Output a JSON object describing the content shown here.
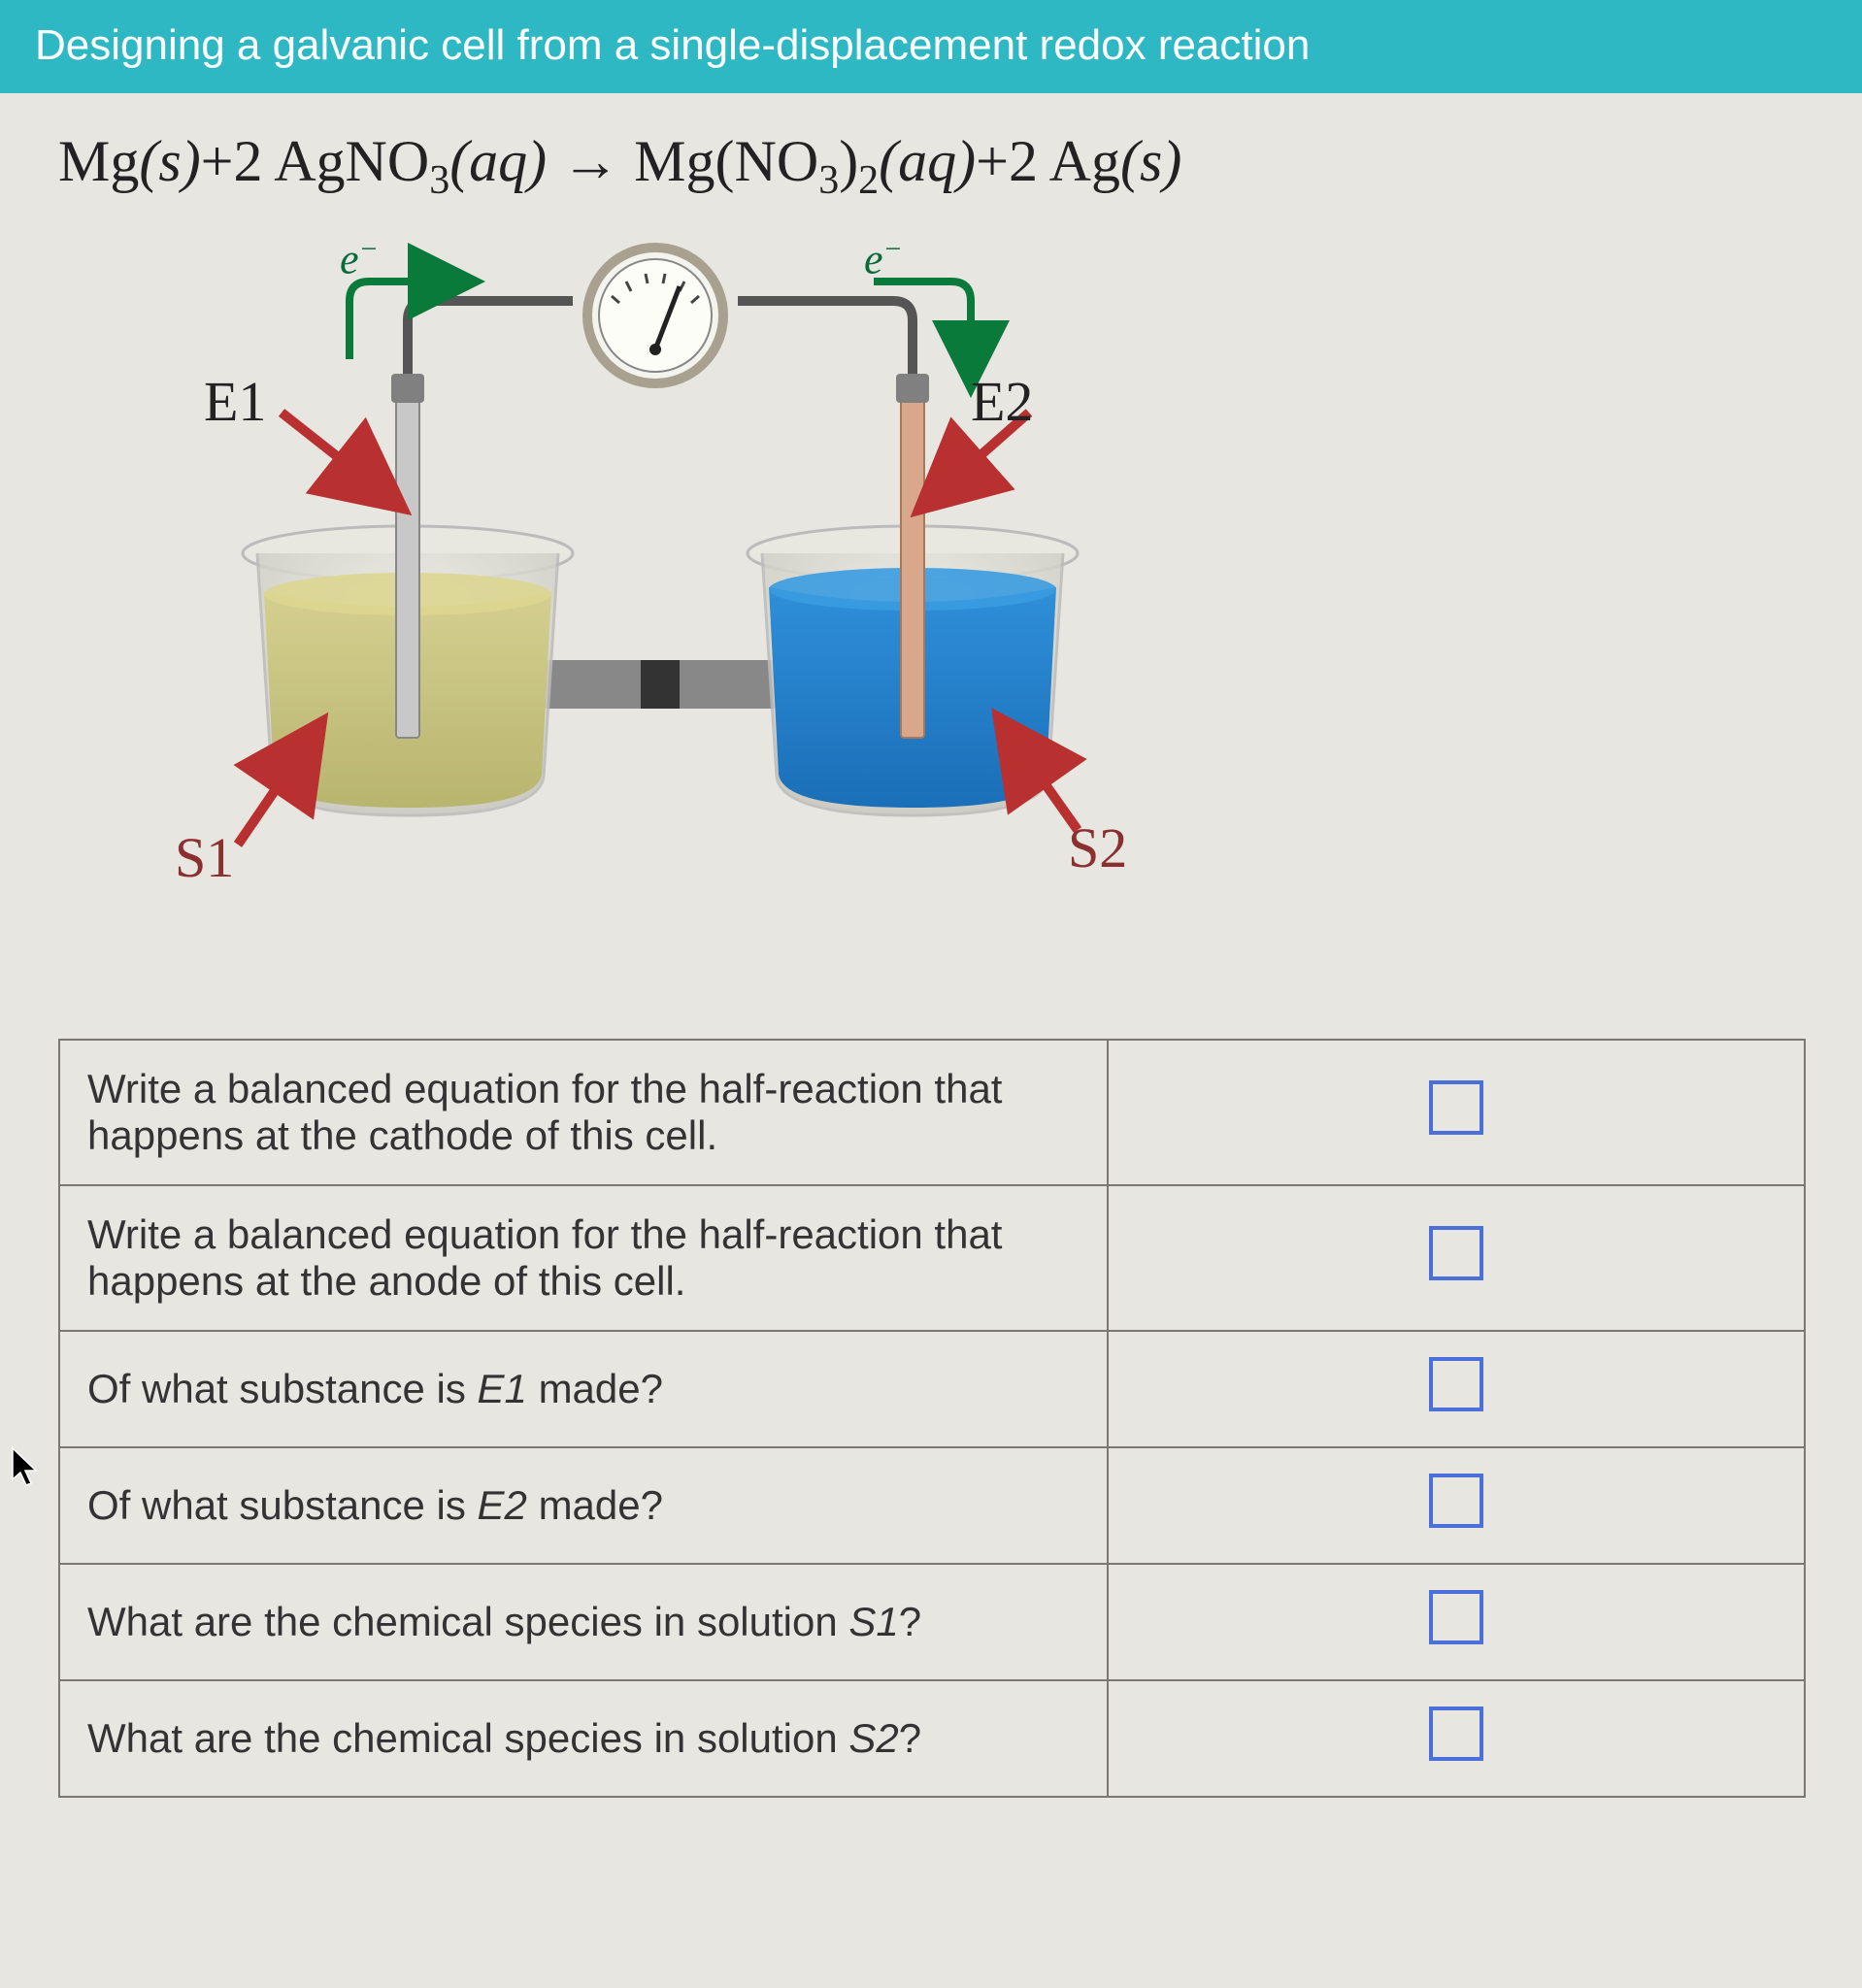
{
  "header": {
    "title": "Designing a galvanic cell from a single-displacement redox reaction"
  },
  "equation": {
    "lhs1": "Mg",
    "lhs1_state": "(s)",
    "plus1": "+2 AgNO",
    "lhs2_sub": "3",
    "lhs2_state": "(aq)",
    "arrow": " → ",
    "rhs1": "Mg",
    "rhs1_par_open": "(",
    "rhs1_inner": "NO",
    "rhs1_sub": "3",
    "rhs1_par_close": ")",
    "rhs1_sub2": "2",
    "rhs1_state": "(aq)",
    "plus2": "+2 Ag",
    "rhs2_state": "(s)"
  },
  "diagram": {
    "e1": "E1",
    "e2": "E2",
    "s1": "S1",
    "s2": "S2",
    "electronL": "e",
    "electronR": "e",
    "minus": "−",
    "colors": {
      "wire": "#555555",
      "electrode1": "#c8c8c8",
      "electrode2": "#d9a78a",
      "solution1_top": "#d4cf8f",
      "solution1_bot": "#b8b56f",
      "solution2_top": "#2f8fd9",
      "solution2_bot": "#1a6fb8",
      "beaker": "#cfcfc7",
      "beaker_rim": "#e8e8e0",
      "bridge": "#888888",
      "bridge_dark": "#333333",
      "arrow_red": "#b83030",
      "arrow_green": "#0a7a3a",
      "meter_body": "#f4f4ee",
      "meter_ring": "#a8a190",
      "meter_needle": "#222222"
    }
  },
  "questions": {
    "rows": [
      {
        "text": "Write a balanced equation for the half-reaction that happens at the cathode of this cell."
      },
      {
        "text": "Write a balanced equation for the half-reaction that happens at the anode of this cell."
      },
      {
        "text": "Of what substance is E1 made?",
        "italic_token": "E1"
      },
      {
        "text": "Of what substance is E2 made?",
        "italic_token": "E2"
      },
      {
        "text": "What are the chemical species in solution S1?",
        "italic_token": "S1"
      },
      {
        "text": "What are the chemical species in solution S2?",
        "italic_token": "S2"
      }
    ]
  }
}
